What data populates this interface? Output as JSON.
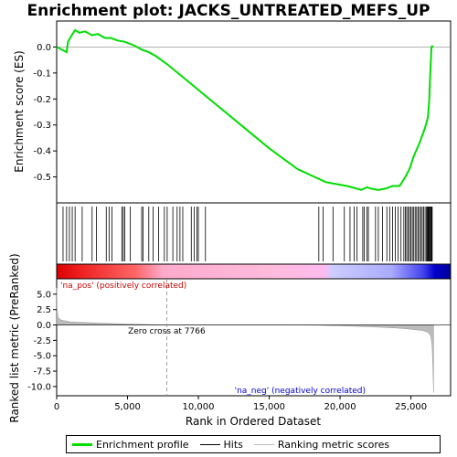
{
  "chart_data": {
    "type": "line",
    "title": "Enrichment plot: JACKS_UNTREATED_MEFS_UP",
    "xlabel": "Rank in Ordered Dataset",
    "ylabel_top": "Enrichment score (ES)",
    "ylabel_bottom": "Ranked list metric (PreRanked)",
    "xlim": [
      0,
      27800
    ],
    "x_ticks": [
      0,
      5000,
      10000,
      15000,
      20000,
      25000
    ],
    "x_tick_labels": [
      "0",
      "5,000",
      "10,000",
      "15,000",
      "20,000",
      "25,000"
    ],
    "es_ylim": [
      -0.6,
      0.1
    ],
    "es_ticks": [
      0.0,
      -0.1,
      -0.2,
      -0.3,
      -0.4,
      -0.5
    ],
    "es_tick_labels": [
      "0.0",
      "-0.1",
      "-0.2",
      "-0.3",
      "-0.4",
      "-0.5"
    ],
    "metric_ylim": [
      -11.5,
      7.5
    ],
    "metric_ticks": [
      5.0,
      2.5,
      0.0,
      -2.5,
      -5.0,
      -7.5,
      -10.0
    ],
    "metric_tick_labels": [
      "5.0",
      "2.5",
      "0.0",
      "-2.5",
      "-5.0",
      "-7.5",
      "-10.0"
    ],
    "series": [
      {
        "name": "Enrichment profile",
        "color": "#00dd00",
        "x": [
          0,
          700,
          800,
          1000,
          1300,
          1600,
          2000,
          2500,
          2900,
          3400,
          3800,
          4300,
          4800,
          5500,
          6000,
          6500,
          7000,
          7766,
          9000,
          11000,
          13000,
          15000,
          17000,
          19000,
          20500,
          21500,
          21900,
          22200,
          22700,
          23200,
          23700,
          24200,
          24600,
          24900,
          25200,
          25600,
          26000,
          26200,
          26300,
          26350,
          26400,
          26450,
          26500,
          26600
        ],
        "y": [
          0.0,
          -0.02,
          0.02,
          0.04,
          0.065,
          0.055,
          0.06,
          0.045,
          0.05,
          0.035,
          0.035,
          0.025,
          0.02,
          0.005,
          -0.01,
          -0.02,
          -0.035,
          -0.065,
          -0.12,
          -0.21,
          -0.3,
          -0.39,
          -0.47,
          -0.52,
          -0.535,
          -0.55,
          -0.54,
          -0.545,
          -0.55,
          -0.545,
          -0.535,
          -0.535,
          -0.5,
          -0.47,
          -0.42,
          -0.37,
          -0.31,
          -0.27,
          -0.2,
          -0.12,
          -0.06,
          0.0,
          0.003,
          0.0
        ]
      }
    ],
    "hits": [
      450,
      700,
      900,
      1100,
      1300,
      1800,
      2500,
      2800,
      3500,
      3700,
      3900,
      4600,
      4700,
      4800,
      5200,
      6000,
      6100,
      6500,
      6800,
      7200,
      7600,
      7800,
      8200,
      8500,
      8700,
      8900,
      9500,
      9700,
      9900,
      10000,
      10500,
      18500,
      18800,
      19500,
      20300,
      20700,
      21000,
      21200,
      21600,
      21700,
      21900,
      22000,
      22500,
      22700,
      23000,
      23300,
      23500,
      23700,
      23900,
      24100,
      24300,
      24500,
      24600,
      24700,
      24800,
      24900,
      25000,
      25100,
      25200,
      25300,
      25400,
      25500,
      25600,
      25700,
      25800,
      25900,
      26000,
      26100,
      26150,
      26200,
      26250,
      26300,
      26350,
      26400,
      26450,
      26500
    ],
    "metric_curve": {
      "x": [
        0,
        30,
        100,
        300,
        1000,
        3000,
        5000,
        7000,
        7766,
        10000,
        15000,
        18500,
        20000,
        22000,
        24000,
        25000,
        25800,
        26200,
        26400,
        26500,
        26550,
        26600
      ],
      "y": [
        6.0,
        2.5,
        1.2,
        0.8,
        0.5,
        0.3,
        0.15,
        0.05,
        0.0,
        0.0,
        0.0,
        -0.05,
        -0.15,
        -0.3,
        -0.5,
        -0.7,
        -0.9,
        -1.2,
        -1.8,
        -3.5,
        -7.0,
        -11.0
      ]
    },
    "zero_cross_label": "Zero cross at 7766",
    "zero_cross_x": 7766,
    "pos_label": "'na_pos' (positively correlated)",
    "neg_label": "'na_neg' (negatively correlated)",
    "legend": [
      {
        "label": "Enrichment profile",
        "color": "#00dd00"
      },
      {
        "label": "Hits",
        "color": "#000000"
      },
      {
        "label": "Ranking metric scores",
        "color": "#bbbbbb"
      }
    ],
    "colors": {
      "es_line": "#00dd00",
      "pos_annot": "#cc0000",
      "neg_annot": "#0000cc",
      "grid": "#bbbbbb",
      "metric_fill": "#bbbbbb"
    },
    "grid": false,
    "legend_placement": "bottom"
  }
}
